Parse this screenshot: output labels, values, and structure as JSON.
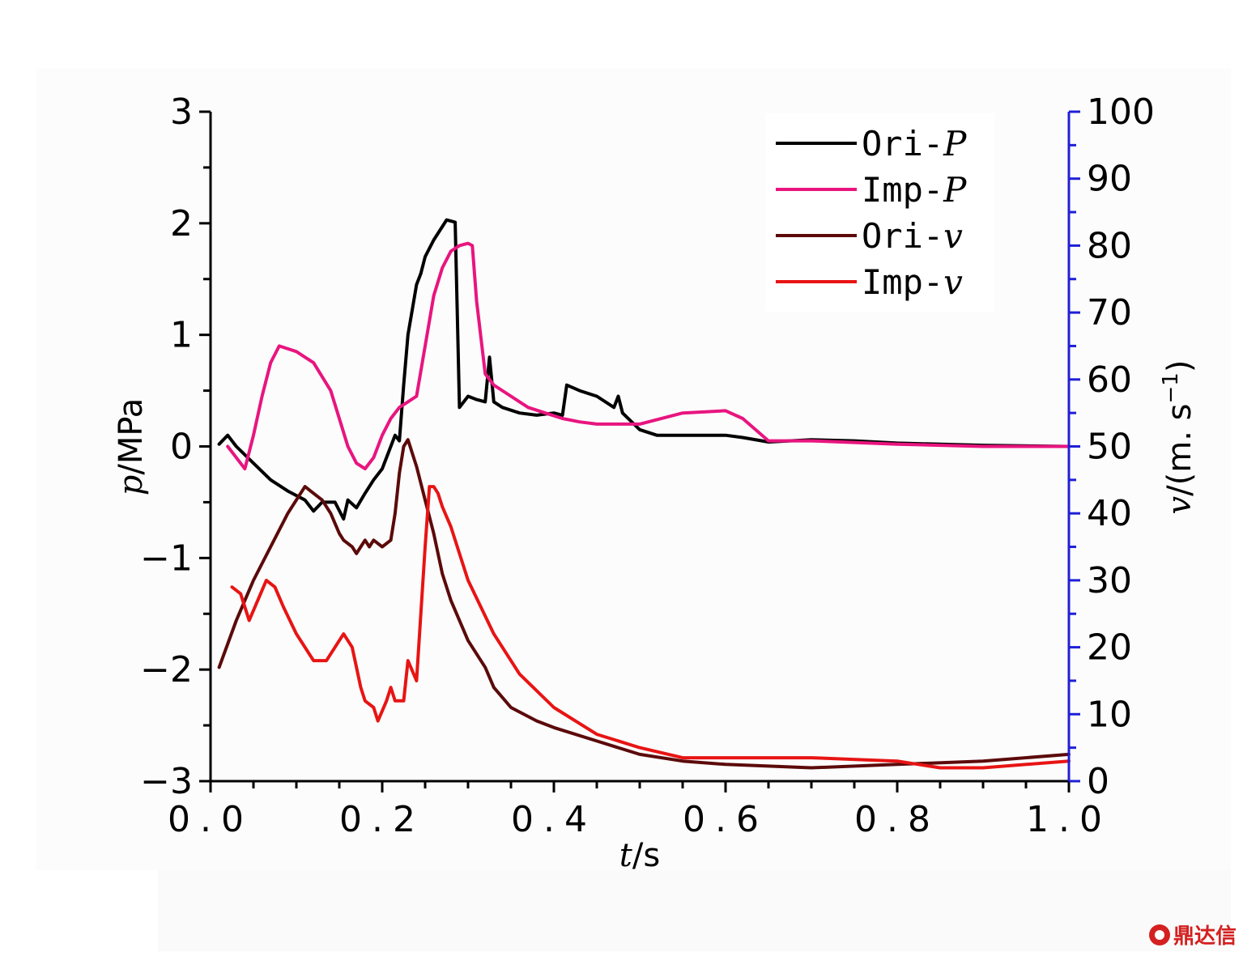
{
  "chart_data": {
    "type": "line",
    "x_axis": {
      "label_var": "t",
      "label_unit": "/s",
      "range": [
        0.0,
        1.0
      ],
      "ticks": [
        0.0,
        0.2,
        0.4,
        0.6,
        0.8,
        1.0
      ],
      "tick_labels": [
        "0.0",
        "0.2",
        "0.4",
        "0.6",
        "0.8",
        "1.0"
      ]
    },
    "y_left": {
      "label_var": "p",
      "label_unit": "/MPa",
      "range": [
        -3,
        3
      ],
      "ticks": [
        -3,
        -2,
        -1,
        0,
        1,
        2,
        3
      ],
      "tick_labels": [
        "−3",
        "−2",
        "−1",
        "0",
        "1",
        "2",
        "3"
      ]
    },
    "y_right": {
      "label_var": "v",
      "label_unit": "/(m. s",
      "label_exp": "−1",
      "label_close": ")",
      "range": [
        0,
        100
      ],
      "ticks": [
        0,
        10,
        20,
        30,
        40,
        50,
        60,
        70,
        80,
        90,
        100
      ],
      "tick_labels": [
        "0",
        "10",
        "20",
        "30",
        "40",
        "50",
        "60",
        "70",
        "80",
        "90",
        "100"
      ],
      "color": "#1f1fd6"
    },
    "legend": {
      "position": "top-right",
      "items": [
        {
          "prefix": "Ori-",
          "var": "P",
          "color": "#000000"
        },
        {
          "prefix": "Imp-",
          "var": "P",
          "color": "#e8157f"
        },
        {
          "prefix": "Ori-",
          "var": "v",
          "color": "#5c0a0a"
        },
        {
          "prefix": "Imp-",
          "var": "v",
          "color": "#e81414"
        }
      ]
    },
    "series": [
      {
        "name": "Ori-P",
        "axis": "left",
        "color": "#000000",
        "x": [
          0.01,
          0.02,
          0.03,
          0.05,
          0.07,
          0.09,
          0.11,
          0.12,
          0.13,
          0.145,
          0.155,
          0.16,
          0.17,
          0.18,
          0.19,
          0.2,
          0.21,
          0.215,
          0.22,
          0.225,
          0.23,
          0.24,
          0.245,
          0.25,
          0.26,
          0.27,
          0.275,
          0.28,
          0.285,
          0.29,
          0.3,
          0.31,
          0.32,
          0.325,
          0.33,
          0.34,
          0.36,
          0.38,
          0.4,
          0.41,
          0.415,
          0.43,
          0.45,
          0.47,
          0.475,
          0.48,
          0.5,
          0.52,
          0.55,
          0.6,
          0.62,
          0.65,
          0.7,
          0.75,
          0.8,
          0.9,
          1.0
        ],
        "y": [
          0.02,
          0.1,
          0.0,
          -0.15,
          -0.3,
          -0.4,
          -0.48,
          -0.58,
          -0.5,
          -0.5,
          -0.65,
          -0.48,
          -0.55,
          -0.42,
          -0.3,
          -0.2,
          0.0,
          0.1,
          0.05,
          0.55,
          1.0,
          1.45,
          1.55,
          1.7,
          1.85,
          1.97,
          2.03,
          2.02,
          2.01,
          0.35,
          0.45,
          0.42,
          0.4,
          0.8,
          0.4,
          0.35,
          0.3,
          0.28,
          0.3,
          0.28,
          0.55,
          0.5,
          0.45,
          0.35,
          0.45,
          0.3,
          0.15,
          0.1,
          0.1,
          0.1,
          0.08,
          0.04,
          0.06,
          0.05,
          0.03,
          0.01,
          0.0
        ]
      },
      {
        "name": "Imp-P",
        "axis": "left",
        "color": "#e8157f",
        "x": [
          0.02,
          0.03,
          0.04,
          0.05,
          0.06,
          0.07,
          0.08,
          0.1,
          0.12,
          0.14,
          0.15,
          0.16,
          0.17,
          0.18,
          0.19,
          0.2,
          0.21,
          0.22,
          0.23,
          0.24,
          0.25,
          0.26,
          0.27,
          0.28,
          0.29,
          0.3,
          0.305,
          0.31,
          0.32,
          0.33,
          0.35,
          0.37,
          0.39,
          0.41,
          0.43,
          0.45,
          0.5,
          0.55,
          0.6,
          0.62,
          0.65,
          0.7,
          0.8,
          0.9,
          1.0
        ],
        "y": [
          0.0,
          -0.1,
          -0.2,
          0.1,
          0.45,
          0.75,
          0.9,
          0.85,
          0.75,
          0.5,
          0.25,
          0.0,
          -0.15,
          -0.2,
          -0.1,
          0.1,
          0.25,
          0.35,
          0.4,
          0.45,
          0.9,
          1.35,
          1.6,
          1.75,
          1.8,
          1.82,
          1.8,
          1.3,
          0.65,
          0.55,
          0.45,
          0.35,
          0.3,
          0.25,
          0.22,
          0.2,
          0.2,
          0.3,
          0.32,
          0.25,
          0.05,
          0.05,
          0.02,
          0.0,
          0.0
        ]
      },
      {
        "name": "Ori-v",
        "axis": "right",
        "color": "#5c0a0a",
        "x": [
          0.01,
          0.03,
          0.05,
          0.07,
          0.09,
          0.11,
          0.12,
          0.13,
          0.14,
          0.15,
          0.155,
          0.165,
          0.17,
          0.175,
          0.18,
          0.185,
          0.19,
          0.2,
          0.21,
          0.215,
          0.22,
          0.225,
          0.23,
          0.235,
          0.24,
          0.25,
          0.26,
          0.27,
          0.28,
          0.3,
          0.32,
          0.33,
          0.35,
          0.38,
          0.4,
          0.45,
          0.5,
          0.55,
          0.6,
          0.7,
          0.8,
          0.9,
          1.0
        ],
        "y": [
          17,
          24,
          30,
          35,
          40,
          44,
          43,
          42,
          40,
          37,
          36,
          35,
          34,
          35,
          36,
          35,
          36,
          35,
          36,
          40,
          46,
          50,
          51,
          49,
          47,
          42,
          37,
          31,
          27,
          21,
          17,
          14,
          11,
          9,
          8,
          6,
          4,
          3,
          2.5,
          2,
          2.5,
          3,
          4
        ]
      },
      {
        "name": "Imp-v",
        "axis": "right",
        "color": "#e81414",
        "x": [
          0.025,
          0.035,
          0.045,
          0.055,
          0.065,
          0.075,
          0.085,
          0.1,
          0.12,
          0.135,
          0.15,
          0.155,
          0.165,
          0.175,
          0.18,
          0.19,
          0.195,
          0.205,
          0.21,
          0.215,
          0.225,
          0.23,
          0.24,
          0.25,
          0.255,
          0.26,
          0.265,
          0.27,
          0.28,
          0.3,
          0.33,
          0.36,
          0.4,
          0.45,
          0.5,
          0.55,
          0.6,
          0.7,
          0.8,
          0.85,
          0.9,
          1.0
        ],
        "y": [
          29,
          28,
          24,
          27,
          30,
          29,
          26,
          22,
          18,
          18,
          21,
          22,
          20,
          14,
          12,
          11,
          9,
          12,
          14,
          12,
          12,
          18,
          15,
          35,
          44,
          44,
          43,
          41,
          38,
          30,
          22,
          16,
          11,
          7,
          5,
          3.5,
          3.5,
          3.5,
          3,
          2,
          2,
          3
        ]
      }
    ]
  },
  "watermark": {
    "text": "鼎达信"
  }
}
